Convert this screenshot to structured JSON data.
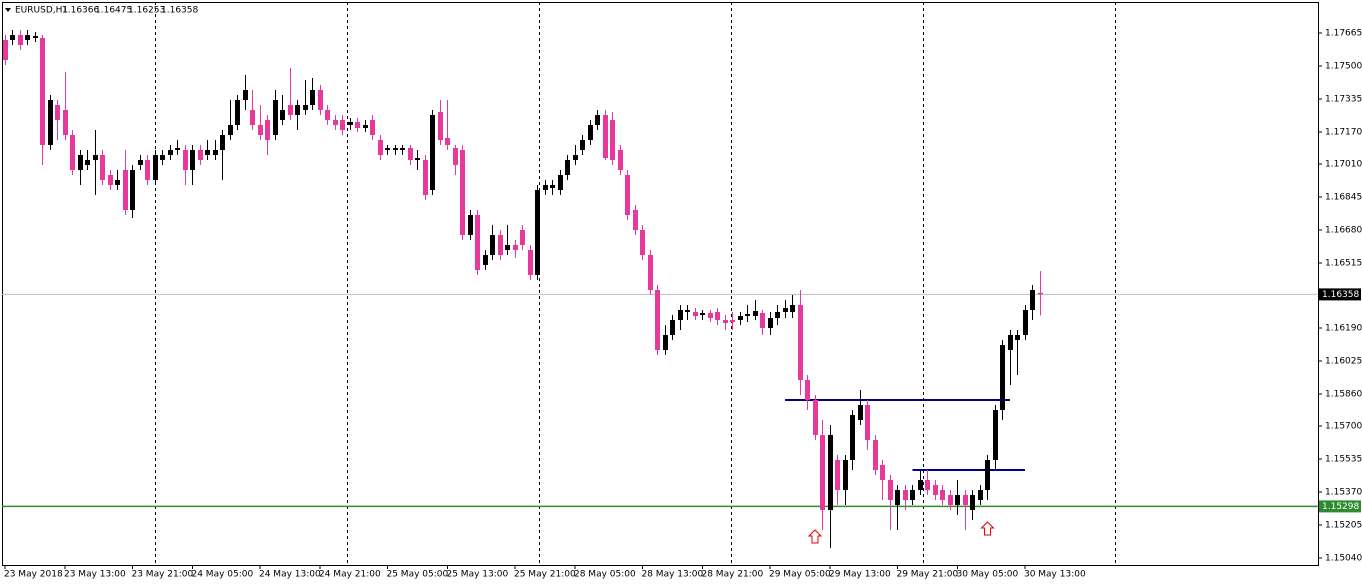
{
  "chart_data": {
    "type": "candlestick",
    "symbol": "EURUSD,H1",
    "up_color": "#000000",
    "down_color": "#e6399b",
    "bid_line_color": "#c0c0c0",
    "xlim": [
      -0.4,
      175.07
    ],
    "ylim": [
      1.15005,
      1.1782
    ],
    "yticks": [
      1.17665,
      {
        "value": 1.175,
        "label": "1.17500"
      },
      1.17335,
      {
        "value": 1.1717,
        "label": "1.17170"
      },
      {
        "value": 1.1701,
        "label": "1.17010"
      },
      1.16845,
      {
        "value": 1.1668,
        "label": "1.16680"
      },
      1.16515,
      {
        "value": 1.1619,
        "label": "1.16190"
      },
      1.16025,
      {
        "value": 1.1586,
        "label": "1.15860"
      },
      {
        "value": 1.157,
        "label": "1.15700"
      },
      1.15535,
      {
        "value": 1.1537,
        "label": "1.15370"
      },
      1.15205,
      {
        "value": 1.1504,
        "label": "1.15040"
      }
    ],
    "xticks": [
      {
        "value": 0,
        "label": "23 May 2018"
      },
      {
        "value": 8,
        "label": "23 May 13:00"
      },
      {
        "value": 17,
        "label": "23 May 21:00"
      },
      {
        "value": 25,
        "label": "24 May 05:00"
      },
      {
        "value": 34,
        "label": "24 May 13:00"
      },
      {
        "value": 42,
        "label": "24 May 21:00"
      },
      {
        "value": 51,
        "label": "25 May 05:00"
      },
      {
        "value": 59,
        "label": "25 May 13:00"
      },
      {
        "value": 68,
        "label": "25 May 21:00"
      },
      {
        "value": 76,
        "label": "28 May 05:00"
      },
      {
        "value": 85,
        "label": "28 May 13:00"
      },
      {
        "value": 93,
        "label": "28 May 21:00"
      },
      {
        "value": 102,
        "label": "29 May 05:00"
      },
      {
        "value": 110,
        "label": "29 May 13:00"
      },
      {
        "value": 119,
        "label": "29 May 21:00"
      },
      {
        "value": 127,
        "label": "30 May 05:00"
      },
      {
        "value": 136,
        "label": "30 May 13:00"
      }
    ],
    "hlines": [
      {
        "value": 1.15298,
        "color": "#2e8b2e"
      }
    ],
    "trendlines": [
      {
        "value": 1.1583,
        "from": 104,
        "to": 134,
        "color": "#00008b"
      },
      {
        "value": 1.1548,
        "from": 121,
        "to": 136,
        "color": "#00008b"
      }
    ],
    "arrows": [
      {
        "x": 108,
        "value": 1.1518,
        "color": "#e00000"
      },
      {
        "x": 131,
        "value": 1.1522,
        "color": "#e00000"
      }
    ],
    "ohlc": [
      [
        1.1763,
        1.17655,
        1.17505,
        1.1753
      ],
      [
        1.1763,
        1.1768,
        1.17605,
        1.17655
      ],
      [
        1.17655,
        1.1768,
        1.1758,
        1.17605
      ],
      [
        1.1763,
        1.1768,
        1.17605,
        1.17655
      ],
      [
        1.1764,
        1.1767,
        1.1762,
        1.1765
      ],
      [
        1.1764,
        1.17655,
        1.17005,
        1.17105
      ],
      [
        1.17105,
        1.17355,
        1.1708,
        1.1733
      ],
      [
        1.17305,
        1.1733,
        1.1713,
        1.1723
      ],
      [
        1.1728,
        1.1747,
        1.1713,
        1.17155
      ],
      [
        1.17155,
        1.1718,
        1.16955,
        1.1698
      ],
      [
        1.1698,
        1.1708,
        1.16905,
        1.17055
      ],
      [
        1.17005,
        1.1708,
        1.1698,
        1.1703
      ],
      [
        1.1703,
        1.1718,
        1.16855,
        1.17055
      ],
      [
        1.17055,
        1.1708,
        1.16905,
        1.1693
      ],
      [
        1.16955,
        1.1698,
        1.1688,
        1.16905
      ],
      [
        1.16905,
        1.1698,
        1.1688,
        1.1693
      ],
      [
        1.1698,
        1.1708,
        1.16755,
        1.1678
      ],
      [
        1.1678,
        1.17005,
        1.1674,
        1.1698
      ],
      [
        1.17005,
        1.17055,
        1.1698,
        1.1703
      ],
      [
        1.1703,
        1.17055,
        1.16905,
        1.1693
      ],
      [
        1.1693,
        1.1708,
        1.16905,
        1.17055
      ],
      [
        1.1703,
        1.1708,
        1.17005,
        1.17055
      ],
      [
        1.17055,
        1.17105,
        1.1703,
        1.1708
      ],
      [
        1.1708,
        1.1713,
        1.17055,
        1.1709
      ],
      [
        1.1708,
        1.17105,
        1.16905,
        1.1698
      ],
      [
        1.1698,
        1.17105,
        1.16905,
        1.1708
      ],
      [
        1.1708,
        1.17105,
        1.17005,
        1.1703
      ],
      [
        1.17055,
        1.1713,
        1.1703,
        1.1708
      ],
      [
        1.17055,
        1.1713,
        1.1703,
        1.1708
      ],
      [
        1.1708,
        1.1718,
        1.1693,
        1.17155
      ],
      [
        1.17155,
        1.1733,
        1.1713,
        1.17205
      ],
      [
        1.17205,
        1.17355,
        1.1718,
        1.1733
      ],
      [
        1.1733,
        1.17455,
        1.1728,
        1.1738
      ],
      [
        1.1728,
        1.1738,
        1.1718,
        1.17205
      ],
      [
        1.17205,
        1.17305,
        1.1713,
        1.17155
      ],
      [
        1.1723,
        1.17255,
        1.17055,
        1.1713
      ],
      [
        1.17155,
        1.1738,
        1.1713,
        1.1733
      ],
      [
        1.1723,
        1.17355,
        1.17205,
        1.1728
      ],
      [
        1.17305,
        1.1749,
        1.1723,
        1.17255
      ],
      [
        1.17255,
        1.1733,
        1.1718,
        1.17305
      ],
      [
        1.1728,
        1.1743,
        1.17255,
        1.17305
      ],
      [
        1.17305,
        1.1744,
        1.1728,
        1.1738
      ],
      [
        1.1738,
        1.17405,
        1.17255,
        1.1728
      ],
      [
        1.1728,
        1.17305,
        1.17205,
        1.1723
      ],
      [
        1.1723,
        1.17255,
        1.1718,
        1.17205
      ],
      [
        1.1723,
        1.17255,
        1.17155,
        1.1718
      ],
      [
        1.17205,
        1.1724,
        1.1718,
        1.1722
      ],
      [
        1.1722,
        1.1724,
        1.1717,
        1.1719
      ],
      [
        1.1719,
        1.1723,
        1.1717,
        1.17205
      ],
      [
        1.1723,
        1.17255,
        1.1713,
        1.17155
      ],
      [
        1.1713,
        1.17155,
        1.1703,
        1.17055
      ],
      [
        1.1708,
        1.17105,
        1.17055,
        1.1709
      ],
      [
        1.1708,
        1.17105,
        1.17055,
        1.1709
      ],
      [
        1.1708,
        1.17105,
        1.17055,
        1.1709
      ],
      [
        1.1709,
        1.17105,
        1.17005,
        1.1703
      ],
      [
        1.1703,
        1.1708,
        1.1698,
        1.1704
      ],
      [
        1.1703,
        1.17055,
        1.1683,
        1.16855
      ],
      [
        1.1688,
        1.1728,
        1.16855,
        1.17255
      ],
      [
        1.1727,
        1.1733,
        1.17105,
        1.1713
      ],
      [
        1.1714,
        1.1733,
        1.1708,
        1.17105
      ],
      [
        1.1709,
        1.17105,
        1.16955,
        1.17005
      ],
      [
        1.1708,
        1.17105,
        1.1663,
        1.16655
      ],
      [
        1.16655,
        1.1678,
        1.1663,
        1.16755
      ],
      [
        1.16755,
        1.1678,
        1.16455,
        1.1648
      ],
      [
        1.16505,
        1.1658,
        1.1648,
        1.16555
      ],
      [
        1.16555,
        1.16705,
        1.1653,
        1.16655
      ],
      [
        1.16655,
        1.1668,
        1.1653,
        1.16555
      ],
      [
        1.1658,
        1.16705,
        1.16555,
        1.16605
      ],
      [
        1.16605,
        1.1663,
        1.1654,
        1.1658
      ],
      [
        1.1668,
        1.16705,
        1.1658,
        1.16605
      ],
      [
        1.1658,
        1.16605,
        1.1643,
        1.16455
      ],
      [
        1.16455,
        1.16905,
        1.1643,
        1.1688
      ],
      [
        1.1688,
        1.1693,
        1.16855,
        1.16905
      ],
      [
        1.1689,
        1.1693,
        1.16855,
        1.16905
      ],
      [
        1.1688,
        1.1698,
        1.16855,
        1.16955
      ],
      [
        1.16955,
        1.17055,
        1.1693,
        1.1703
      ],
      [
        1.1703,
        1.17105,
        1.17005,
        1.17055
      ],
      [
        1.1708,
        1.17155,
        1.17055,
        1.1713
      ],
      [
        1.1713,
        1.1723,
        1.17105,
        1.17205
      ],
      [
        1.17205,
        1.1728,
        1.1718,
        1.17255
      ],
      [
        1.17255,
        1.1728,
        1.1703,
        1.1704
      ],
      [
        1.1723,
        1.1727,
        1.17005,
        1.1703
      ],
      [
        1.1708,
        1.17105,
        1.16955,
        1.1698
      ],
      [
        1.16955,
        1.1698,
        1.1673,
        1.16755
      ],
      [
        1.1678,
        1.16805,
        1.16655,
        1.1668
      ],
      [
        1.1668,
        1.16705,
        1.1653,
        1.16555
      ],
      [
        1.16555,
        1.1658,
        1.16355,
        1.1638
      ],
      [
        1.1638,
        1.16405,
        1.16055,
        1.1608
      ],
      [
        1.1608,
        1.16205,
        1.16055,
        1.16155
      ],
      [
        1.16155,
        1.16255,
        1.1613,
        1.1623
      ],
      [
        1.1623,
        1.16305,
        1.1618,
        1.1628
      ],
      [
        1.1627,
        1.16305,
        1.1623,
        1.1628
      ],
      [
        1.1627,
        1.1629,
        1.1623,
        1.1625
      ],
      [
        1.16255,
        1.1628,
        1.1623,
        1.16265
      ],
      [
        1.16265,
        1.1628,
        1.1622,
        1.1624
      ],
      [
        1.1627,
        1.1629,
        1.16205,
        1.1623
      ],
      [
        1.1623,
        1.16255,
        1.1618,
        1.16215
      ],
      [
        1.1623,
        1.1627,
        1.1618,
        1.1622
      ],
      [
        1.1623,
        1.1627,
        1.16205,
        1.1625
      ],
      [
        1.1625,
        1.16305,
        1.1622,
        1.1626
      ],
      [
        1.1625,
        1.1633,
        1.1623,
        1.16275
      ],
      [
        1.16265,
        1.1628,
        1.16155,
        1.1619
      ],
      [
        1.1619,
        1.1627,
        1.16155,
        1.1624
      ],
      [
        1.1624,
        1.16305,
        1.16205,
        1.1627
      ],
      [
        1.1627,
        1.1633,
        1.1624,
        1.1629
      ],
      [
        1.1627,
        1.16355,
        1.1624,
        1.16305
      ],
      [
        1.16305,
        1.1638,
        1.15855,
        1.1593
      ],
      [
        1.1593,
        1.15955,
        1.1578,
        1.1583
      ],
      [
        1.1583,
        1.15855,
        1.1563,
        1.15655
      ],
      [
        1.15655,
        1.1573,
        1.1518,
        1.1528
      ],
      [
        1.1528,
        1.15705,
        1.1509,
        1.15655
      ],
      [
        1.1553,
        1.15555,
        1.15305,
        1.1538
      ],
      [
        1.1538,
        1.15555,
        1.15305,
        1.1553
      ],
      [
        1.1553,
        1.1578,
        1.1548,
        1.15755
      ],
      [
        1.1573,
        1.1588,
        1.15705,
        1.15805
      ],
      [
        1.15805,
        1.1583,
        1.1558,
        1.1563
      ],
      [
        1.1563,
        1.15655,
        1.15455,
        1.1548
      ],
      [
        1.15505,
        1.1553,
        1.1533,
        1.1543
      ],
      [
        1.1543,
        1.15455,
        1.1518,
        1.1533
      ],
      [
        1.15305,
        1.15405,
        1.1518,
        1.1538
      ],
      [
        1.1538,
        1.15405,
        1.1528,
        1.1533
      ],
      [
        1.1533,
        1.15405,
        1.15305,
        1.1538
      ],
      [
        1.1538,
        1.1548,
        1.15355,
        1.1543
      ],
      [
        1.1543,
        1.1548,
        1.15355,
        1.1538
      ],
      [
        1.15405,
        1.1543,
        1.1533,
        1.15355
      ],
      [
        1.1538,
        1.15405,
        1.15305,
        1.1533
      ],
      [
        1.15355,
        1.1538,
        1.1528,
        1.15305
      ],
      [
        1.15305,
        1.1543,
        1.15255,
        1.15355
      ],
      [
        1.15355,
        1.1538,
        1.1518,
        1.15305
      ],
      [
        1.1528,
        1.1538,
        1.1523,
        1.15355
      ],
      [
        1.1533,
        1.15405,
        1.15305,
        1.1538
      ],
      [
        1.1538,
        1.15555,
        1.1533,
        1.1553
      ],
      [
        1.1553,
        1.15805,
        1.1548,
        1.1578
      ],
      [
        1.1578,
        1.1613,
        1.1573,
        1.16105
      ],
      [
        1.1608,
        1.1618,
        1.15905,
        1.16155
      ],
      [
        1.1613,
        1.1618,
        1.15955,
        1.16155
      ],
      [
        1.16155,
        1.16305,
        1.1613,
        1.1628
      ],
      [
        1.1628,
        1.16405,
        1.1623,
        1.1638
      ],
      [
        1.16366,
        1.16475,
        1.16253,
        1.16358
      ]
    ]
  }
}
